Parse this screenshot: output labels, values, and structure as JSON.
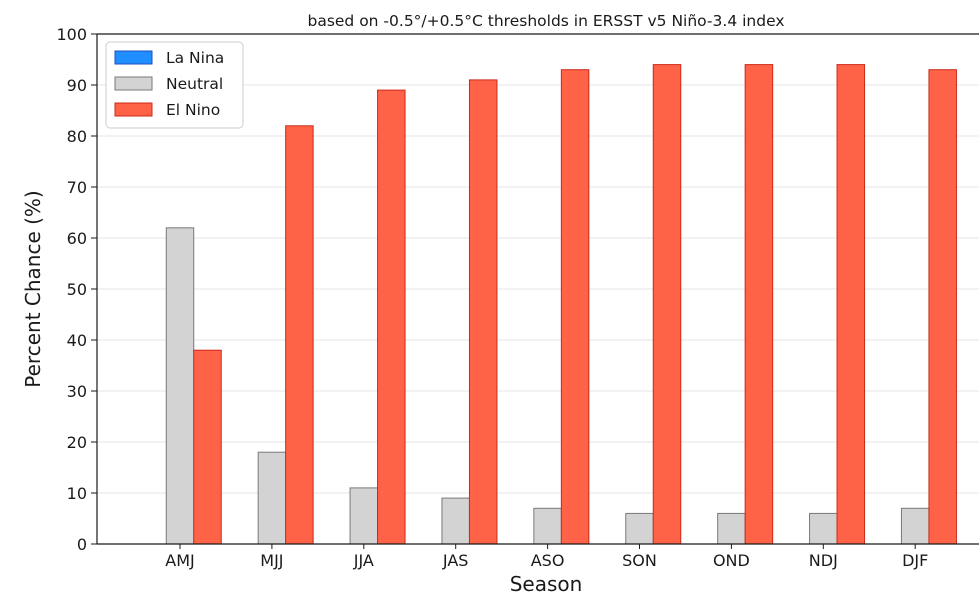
{
  "chart_data": {
    "type": "bar",
    "title": "based on -0.5°/+0.5°C thresholds in ERSST v5 Niño-3.4 index",
    "xlabel": "Season",
    "ylabel": "Percent Chance (%)",
    "ylim": [
      0,
      100
    ],
    "yticks": [
      0,
      10,
      20,
      30,
      40,
      50,
      60,
      70,
      80,
      90,
      100
    ],
    "grid": "horizontal",
    "legend_position": "top-left",
    "categories": [
      "AMJ",
      "MJJ",
      "JJA",
      "JAS",
      "ASO",
      "SON",
      "OND",
      "NDJ",
      "DJF"
    ],
    "series": [
      {
        "name": "La Nina",
        "color": "#1f8fff",
        "edge": "#1f4fc0",
        "values": [
          0,
          0,
          0,
          0,
          0,
          0,
          0,
          0,
          0
        ]
      },
      {
        "name": "Neutral",
        "color": "#d3d3d3",
        "edge": "#7a7a7a",
        "values": [
          62,
          18,
          11,
          9,
          7,
          6,
          6,
          6,
          7
        ]
      },
      {
        "name": "El Nino",
        "color": "#ff6347",
        "edge": "#cc2a1a",
        "values": [
          38,
          82,
          89,
          91,
          93,
          94,
          94,
          94,
          93
        ]
      }
    ]
  }
}
